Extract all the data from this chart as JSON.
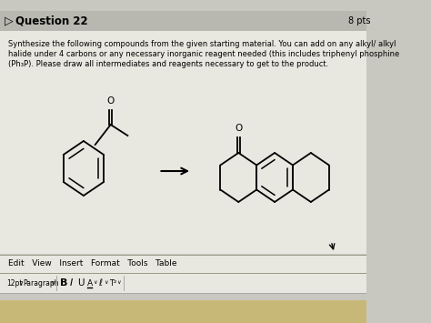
{
  "bg_color": "#c8c8c0",
  "header_bg": "#b8b8b0",
  "content_bg": "#e8e8e0",
  "title": "Question 22",
  "pts": "8 pts",
  "body_line1": "Synthesize the following compounds from the given starting material. You can add on any alkyl/ alkyl",
  "body_line2": "halide under 4 carbons or any necessary inorganic reagent needed (this includes triphenyl phosphine",
  "body_line3": "(Ph₃P). Please draw all intermediates and reagents necessary to get to the product.",
  "toolbar_text1": "Edit   View   Insert   Format   Tools   Table",
  "fig_width": 4.74,
  "fig_height": 3.55,
  "dpi": 100
}
